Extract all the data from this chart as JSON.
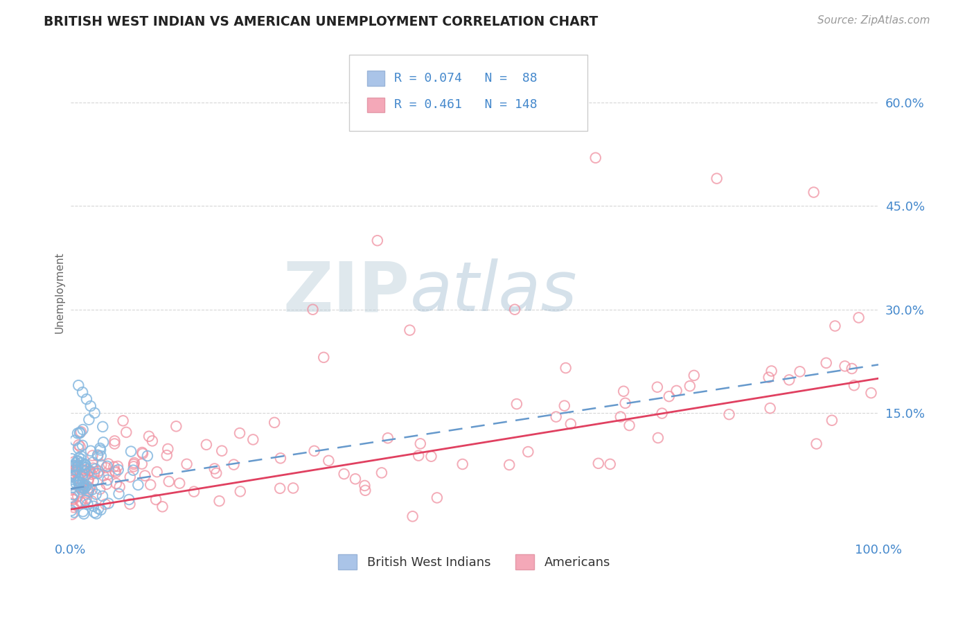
{
  "title": "BRITISH WEST INDIAN VS AMERICAN UNEMPLOYMENT CORRELATION CHART",
  "source_text": "Source: ZipAtlas.com",
  "ylabel": "Unemployment",
  "ytick_labels": [
    "15.0%",
    "30.0%",
    "45.0%",
    "60.0%"
  ],
  "ytick_values": [
    0.15,
    0.3,
    0.45,
    0.6
  ],
  "xlim": [
    0,
    1.0
  ],
  "ylim": [
    -0.03,
    0.68
  ],
  "blue_color": "#85b8e0",
  "pink_color": "#f090a0",
  "blue_line_color": "#6699cc",
  "pink_line_color": "#e04060",
  "background_color": "#ffffff",
  "grid_color": "#cccccc",
  "title_color": "#222222",
  "axis_label_color": "#4488cc",
  "watermark_color": "#ccd8e8",
  "watermark_text": "ZIPatlas",
  "legend_label1": "British West Indians",
  "legend_label2": "Americans",
  "blue_R": 0.074,
  "blue_N": 88,
  "pink_R": 0.461,
  "pink_N": 148,
  "blue_line_start_y": 0.04,
  "blue_line_end_y": 0.22,
  "pink_line_start_y": 0.01,
  "pink_line_end_y": 0.2
}
